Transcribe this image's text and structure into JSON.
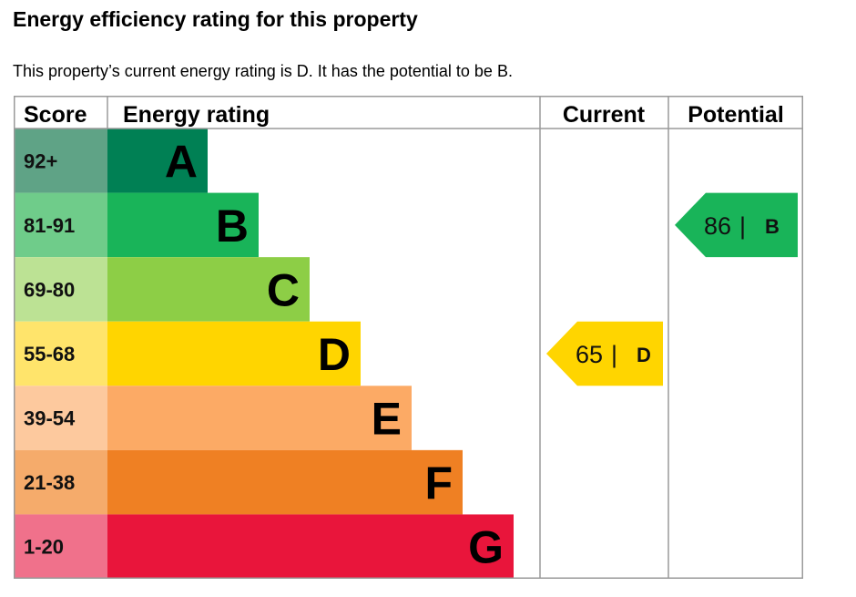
{
  "title": "Energy efficiency rating for this property",
  "description": "This property’s current energy rating is D. It has the potential to be B.",
  "chart_data": {
    "type": "table",
    "headers": {
      "score": "Score",
      "rating": "Energy rating",
      "current": "Current",
      "potential": "Potential"
    },
    "bands": [
      {
        "letter": "A",
        "range": "92+",
        "color": "#008054",
        "score_color": "#5fa386"
      },
      {
        "letter": "B",
        "range": "81-91",
        "color": "#19b459",
        "score_color": "#6fcc8a"
      },
      {
        "letter": "C",
        "range": "69-80",
        "color": "#8dce46",
        "score_color": "#bce294"
      },
      {
        "letter": "D",
        "range": "55-68",
        "color": "#ffd500",
        "score_color": "#ffe46b"
      },
      {
        "letter": "E",
        "range": "39-54",
        "color": "#fcaa65",
        "score_color": "#fdc99e"
      },
      {
        "letter": "F",
        "range": "21-38",
        "color": "#ef8023",
        "score_color": "#f5ab6b"
      },
      {
        "letter": "G",
        "range": "1-20",
        "color": "#e9153b",
        "score_color": "#f0718b"
      }
    ],
    "current": {
      "value": 65,
      "letter": "D"
    },
    "potential": {
      "value": 86,
      "letter": "B"
    },
    "separator": "|"
  }
}
